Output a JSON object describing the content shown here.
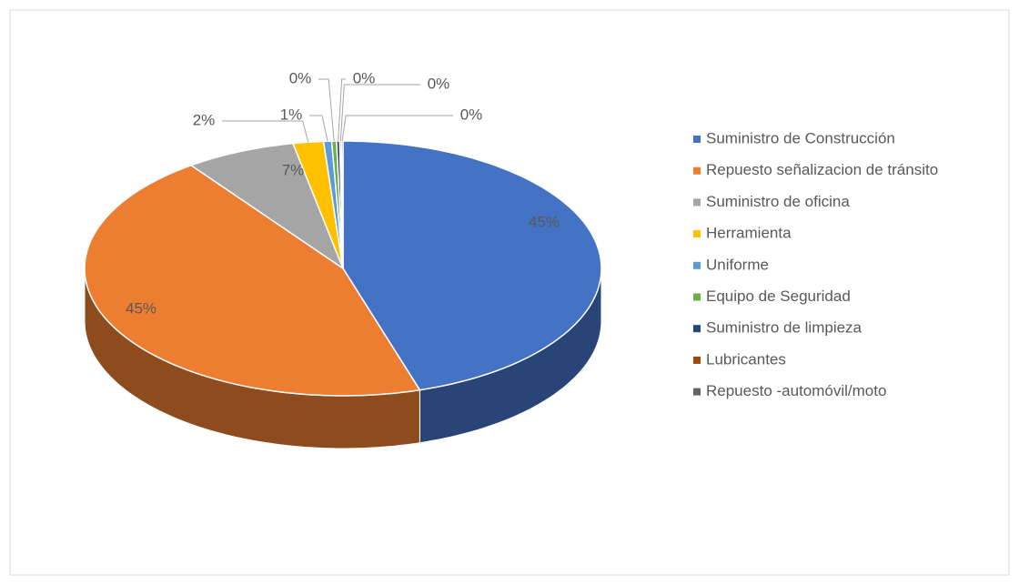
{
  "chart_data": {
    "type": "pie3d",
    "categories": [
      "Suministro de Construcción",
      "Repuesto señalizacion de tránsito",
      "Suministro de oficina",
      "Herramienta",
      "Uniforme",
      "Equipo de Seguridad",
      "Suministro de limpieza",
      "Lubricantes",
      "Repuesto -automóvil/moto"
    ],
    "values": [
      45.2,
      44.8,
      6.9,
      1.9,
      0.5,
      0.3,
      0.2,
      0.1,
      0.1
    ],
    "value_labels": [
      "45%",
      "45%",
      "7%",
      "2%",
      "1%",
      "0%",
      "0%",
      "0%",
      "0%"
    ],
    "colors": [
      "#4472c4",
      "#ed7d31",
      "#a5a5a5",
      "#ffc000",
      "#5b9bd5",
      "#70ad47",
      "#264478",
      "#9e480e",
      "#636363"
    ],
    "legend": "right"
  }
}
